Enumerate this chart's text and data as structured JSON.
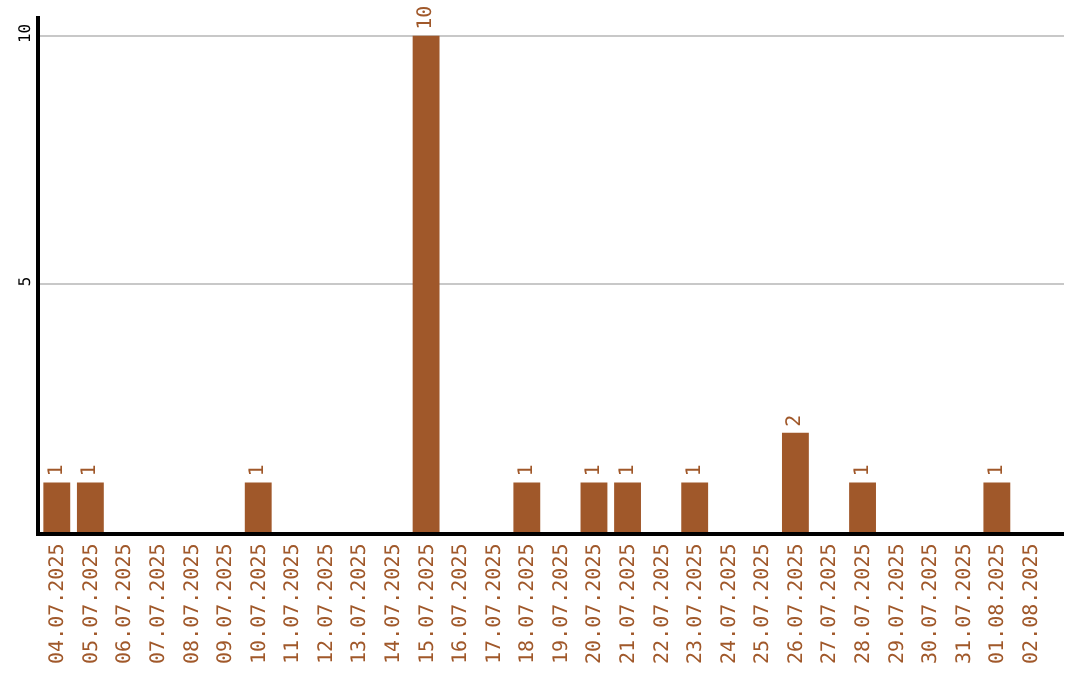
{
  "chart_data": {
    "type": "bar",
    "categories": [
      "04.07.2025",
      "05.07.2025",
      "06.07.2025",
      "07.07.2025",
      "08.07.2025",
      "09.07.2025",
      "10.07.2025",
      "11.07.2025",
      "12.07.2025",
      "13.07.2025",
      "14.07.2025",
      "15.07.2025",
      "16.07.2025",
      "17.07.2025",
      "18.07.2025",
      "19.07.2025",
      "20.07.2025",
      "21.07.2025",
      "22.07.2025",
      "23.07.2025",
      "24.07.2025",
      "25.07.2025",
      "26.07.2025",
      "27.07.2025",
      "28.07.2025",
      "29.07.2025",
      "30.07.2025",
      "31.07.2025",
      "01.08.2025",
      "02.08.2025"
    ],
    "values": [
      1,
      1,
      0,
      0,
      0,
      0,
      1,
      0,
      0,
      0,
      0,
      10,
      0,
      0,
      1,
      0,
      1,
      1,
      0,
      1,
      0,
      0,
      2,
      0,
      1,
      0,
      0,
      0,
      1,
      0
    ],
    "value_labels": [
      "1",
      "1",
      null,
      null,
      null,
      null,
      "1",
      null,
      null,
      null,
      null,
      "10",
      null,
      null,
      "1",
      null,
      "1",
      "1",
      null,
      "1",
      null,
      null,
      "2",
      null,
      "1",
      null,
      null,
      null,
      "1",
      null
    ],
    "color": "#a0582a",
    "ylim": [
      0,
      10.4
    ],
    "yticks": [
      5,
      10
    ],
    "grid": "y",
    "legend": false
  }
}
